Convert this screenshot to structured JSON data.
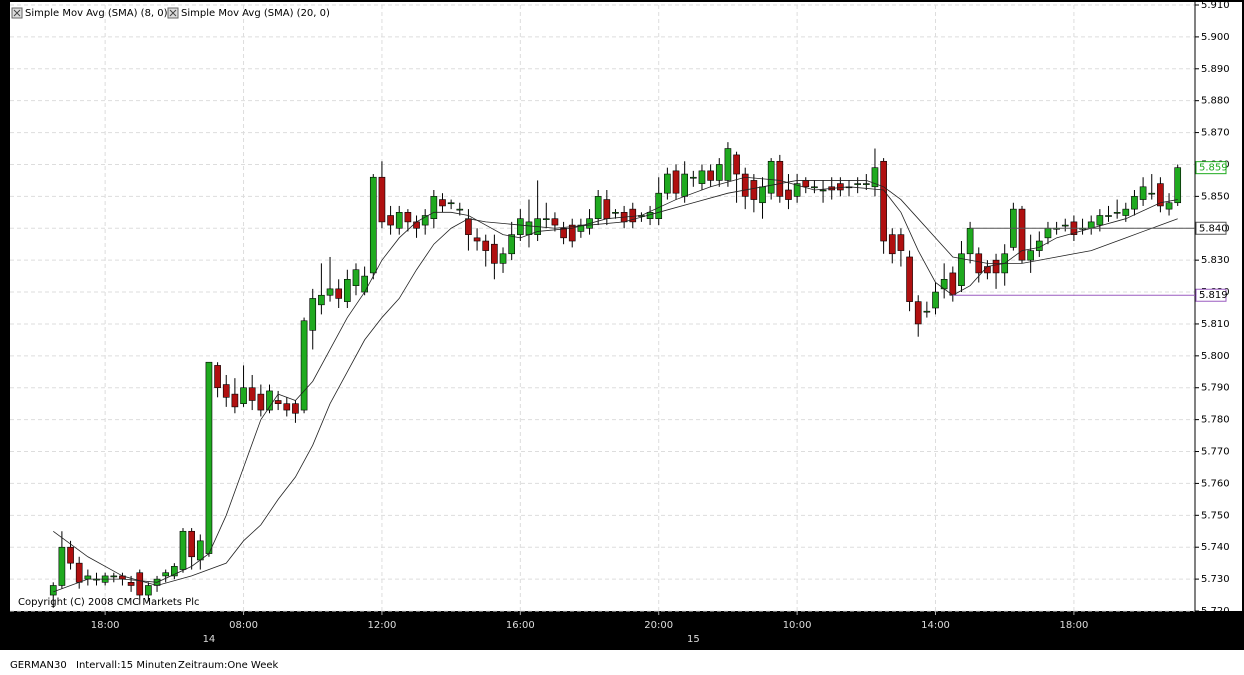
{
  "chart_data": {
    "type": "candlestick",
    "legend": [
      "Simple Mov Avg (SMA) (8, 0)",
      "Simple Mov Avg (SMA) (20, 0)"
    ],
    "copyright": "Copyright (C) 2008 CMC Markets Plc",
    "footer": {
      "symbol": "GERMAN30",
      "interval": "Intervall:15 Minuten",
      "range": "Zeitraum:One Week"
    },
    "up_color": "#1faa1f",
    "down_color": "#b01010",
    "grid": true,
    "ylim": [
      5720,
      5910
    ],
    "yticks": [
      {
        "value": 5720,
        "label": "5.720"
      },
      {
        "value": 5730,
        "label": "5.730"
      },
      {
        "value": 5740,
        "label": "5.740"
      },
      {
        "value": 5750,
        "label": "5.750"
      },
      {
        "value": 5760,
        "label": "5.760"
      },
      {
        "value": 5770,
        "label": "5.770"
      },
      {
        "value": 5780,
        "label": "5.780"
      },
      {
        "value": 5790,
        "label": "5.790"
      },
      {
        "value": 5800,
        "label": "5.800"
      },
      {
        "value": 5810,
        "label": "5.810"
      },
      {
        "value": 5820,
        "label": "5.820"
      },
      {
        "value": 5830,
        "label": "5.830"
      },
      {
        "value": 5840,
        "label": "5.840"
      },
      {
        "value": 5850,
        "label": "5.850"
      },
      {
        "value": 5860,
        "label": "5.860"
      },
      {
        "value": 5870,
        "label": "5.870"
      },
      {
        "value": 5880,
        "label": "5.880"
      },
      {
        "value": 5890,
        "label": "5.890"
      },
      {
        "value": 5900,
        "label": "5.900"
      },
      {
        "value": 5910,
        "label": "5.910"
      }
    ],
    "xlim": [
      -5,
      132
    ],
    "xticks": [
      {
        "value": 6,
        "label": "18:00"
      },
      {
        "value": 22,
        "label": "08:00"
      },
      {
        "value": 38,
        "label": "12:00"
      },
      {
        "value": 54,
        "label": "16:00"
      },
      {
        "value": 70,
        "label": "20:00"
      },
      {
        "value": 86,
        "label": "10:00"
      },
      {
        "value": 102,
        "label": "14:00"
      },
      {
        "value": 118,
        "label": "18:00"
      }
    ],
    "day_ticks": [
      {
        "value": 18,
        "label": "14"
      },
      {
        "value": 74,
        "label": "15"
      }
    ],
    "ohlc": [
      [
        5725,
        5729,
        5721,
        5728
      ],
      [
        5728,
        5745,
        5727,
        5740
      ],
      [
        5740,
        5742,
        5733,
        5735
      ],
      [
        5735,
        5737,
        5727,
        5729
      ],
      [
        5730,
        5733,
        5728,
        5731
      ],
      [
        5730,
        5732,
        5728,
        5730
      ],
      [
        5729,
        5732,
        5728,
        5731
      ],
      [
        5731,
        5732,
        5729,
        5731
      ],
      [
        5731,
        5732,
        5728,
        5730
      ],
      [
        5729,
        5731,
        5726,
        5728
      ],
      [
        5732,
        5733,
        5722,
        5725
      ],
      [
        5725,
        5729,
        5723,
        5728
      ],
      [
        5728,
        5731,
        5726,
        5730
      ],
      [
        5731,
        5733,
        5729,
        5732
      ],
      [
        5731,
        5735,
        5730,
        5734
      ],
      [
        5733,
        5746,
        5732,
        5745
      ],
      [
        5745,
        5746,
        5733,
        5737
      ],
      [
        5736,
        5744,
        5733,
        5742
      ],
      [
        5738,
        5798,
        5737,
        5798
      ],
      [
        5797,
        5798,
        5787,
        5790
      ],
      [
        5791,
        5794,
        5784,
        5787
      ],
      [
        5788,
        5793,
        5782,
        5784
      ],
      [
        5785,
        5797,
        5784,
        5790
      ],
      [
        5790,
        5794,
        5783,
        5786
      ],
      [
        5788,
        5791,
        5781,
        5783
      ],
      [
        5783,
        5791,
        5782,
        5789
      ],
      [
        5786,
        5789,
        5783,
        5785
      ],
      [
        5785,
        5787,
        5781,
        5783
      ],
      [
        5785,
        5786,
        5779,
        5782
      ],
      [
        5783,
        5812,
        5782,
        5811
      ],
      [
        5808,
        5821,
        5802,
        5818
      ],
      [
        5816,
        5829,
        5813,
        5819
      ],
      [
        5819,
        5831,
        5817,
        5821
      ],
      [
        5821,
        5824,
        5815,
        5818
      ],
      [
        5817,
        5827,
        5815,
        5824
      ],
      [
        5822,
        5829,
        5819,
        5827
      ],
      [
        5820,
        5828,
        5819,
        5825
      ],
      [
        5826,
        5857,
        5824,
        5856
      ],
      [
        5856,
        5861,
        5840,
        5842
      ],
      [
        5844,
        5847,
        5838,
        5841
      ],
      [
        5840,
        5847,
        5838,
        5845
      ],
      [
        5845,
        5846,
        5839,
        5842
      ],
      [
        5842,
        5844,
        5837,
        5840
      ],
      [
        5841,
        5846,
        5838,
        5844
      ],
      [
        5843,
        5852,
        5840,
        5850
      ],
      [
        5849,
        5851,
        5845,
        5847
      ],
      [
        5848,
        5849,
        5846,
        5848
      ],
      [
        5846,
        5848,
        5844,
        5846
      ],
      [
        5843,
        5846,
        5833,
        5838
      ],
      [
        5837,
        5840,
        5833,
        5836
      ],
      [
        5836,
        5838,
        5828,
        5833
      ],
      [
        5835,
        5838,
        5824,
        5829
      ],
      [
        5829,
        5834,
        5826,
        5832
      ],
      [
        5832,
        5842,
        5830,
        5838
      ],
      [
        5838,
        5846,
        5836,
        5843
      ],
      [
        5838,
        5849,
        5834,
        5842
      ],
      [
        5838,
        5855,
        5836,
        5843
      ],
      [
        5843,
        5848,
        5840,
        5843
      ],
      [
        5843,
        5845,
        5839,
        5841
      ],
      [
        5840,
        5842,
        5835,
        5837
      ],
      [
        5841,
        5843,
        5834,
        5836
      ],
      [
        5839,
        5843,
        5837,
        5841
      ],
      [
        5840,
        5846,
        5838,
        5843
      ],
      [
        5843,
        5852,
        5841,
        5850
      ],
      [
        5849,
        5852,
        5841,
        5843
      ],
      [
        5845,
        5846,
        5843,
        5845
      ],
      [
        5845,
        5847,
        5840,
        5842
      ],
      [
        5846,
        5848,
        5840,
        5842
      ],
      [
        5844,
        5845,
        5842,
        5844
      ],
      [
        5843,
        5847,
        5841,
        5845
      ],
      [
        5843,
        5856,
        5841,
        5851
      ],
      [
        5851,
        5859,
        5849,
        5857
      ],
      [
        5858,
        5860,
        5849,
        5851
      ],
      [
        5850,
        5861,
        5848,
        5857
      ],
      [
        5856,
        5858,
        5853,
        5856
      ],
      [
        5854,
        5860,
        5852,
        5858
      ],
      [
        5858,
        5860,
        5853,
        5855
      ],
      [
        5855,
        5862,
        5853,
        5860
      ],
      [
        5855,
        5867,
        5853,
        5865
      ],
      [
        5863,
        5864,
        5848,
        5857
      ],
      [
        5857,
        5859,
        5846,
        5850
      ],
      [
        5855,
        5857,
        5845,
        5849
      ],
      [
        5848,
        5856,
        5843,
        5853
      ],
      [
        5851,
        5862,
        5849,
        5861
      ],
      [
        5861,
        5863,
        5848,
        5850
      ],
      [
        5852,
        5857,
        5846,
        5849
      ],
      [
        5850,
        5857,
        5848,
        5854
      ],
      [
        5855,
        5856,
        5851,
        5853
      ],
      [
        5853,
        5855,
        5851,
        5853
      ],
      [
        5852,
        5855,
        5848,
        5852
      ],
      [
        5853,
        5856,
        5849,
        5852
      ],
      [
        5854,
        5856,
        5850,
        5852
      ],
      [
        5853,
        5855,
        5850,
        5853
      ],
      [
        5854,
        5856,
        5851,
        5854
      ],
      [
        5854,
        5857,
        5852,
        5854
      ],
      [
        5853,
        5865,
        5850,
        5859
      ],
      [
        5861,
        5862,
        5832,
        5836
      ],
      [
        5838,
        5840,
        5829,
        5832
      ],
      [
        5838,
        5840,
        5828,
        5833
      ],
      [
        5831,
        5833,
        5814,
        5817
      ],
      [
        5817,
        5819,
        5806,
        5810
      ],
      [
        5814,
        5817,
        5812,
        5814
      ],
      [
        5815,
        5823,
        5813,
        5820
      ],
      [
        5821,
        5829,
        5818,
        5824
      ],
      [
        5826,
        5828,
        5817,
        5819
      ],
      [
        5822,
        5836,
        5820,
        5832
      ],
      [
        5832,
        5842,
        5829,
        5840
      ],
      [
        5832,
        5834,
        5823,
        5826
      ],
      [
        5828,
        5830,
        5824,
        5826
      ],
      [
        5830,
        5832,
        5821,
        5826
      ],
      [
        5826,
        5835,
        5822,
        5832
      ],
      [
        5834,
        5848,
        5833,
        5846
      ],
      [
        5846,
        5847,
        5829,
        5830
      ],
      [
        5830,
        5838,
        5826,
        5833
      ],
      [
        5833,
        5839,
        5831,
        5836
      ],
      [
        5837,
        5842,
        5835,
        5840
      ],
      [
        5840,
        5842,
        5838,
        5840
      ],
      [
        5841,
        5843,
        5839,
        5841
      ],
      [
        5842,
        5844,
        5836,
        5838
      ],
      [
        5840,
        5843,
        5838,
        5840
      ],
      [
        5840,
        5844,
        5838,
        5842
      ],
      [
        5841,
        5846,
        5839,
        5844
      ],
      [
        5844,
        5847,
        5842,
        5844
      ],
      [
        5845,
        5849,
        5843,
        5845
      ],
      [
        5844,
        5848,
        5842,
        5846
      ],
      [
        5846,
        5852,
        5844,
        5850
      ],
      [
        5849,
        5856,
        5847,
        5853
      ],
      [
        5851,
        5857,
        5849,
        5851
      ],
      [
        5854,
        5856,
        5845,
        5847
      ],
      [
        5846,
        5851,
        5844,
        5848
      ],
      [
        5848,
        5860,
        5847,
        5859
      ]
    ],
    "overlays": [
      {
        "name": "Simple Mov Avg (SMA) (8, 0)",
        "color": "#222222",
        "x": [
          0,
          4,
          8,
          12,
          16,
          18,
          20,
          22,
          24,
          26,
          28,
          30,
          32,
          34,
          36,
          38,
          40,
          42,
          44,
          46,
          48,
          50,
          52,
          54,
          56,
          60,
          64,
          68,
          72,
          76,
          80,
          84,
          88,
          92,
          96,
          98,
          100,
          102,
          104,
          106,
          108,
          110,
          112,
          114,
          116,
          120,
          124,
          128,
          130
        ],
        "values": [
          5726,
          5730,
          5730,
          5729,
          5734,
          5738,
          5750,
          5765,
          5780,
          5788,
          5786,
          5792,
          5802,
          5812,
          5820,
          5830,
          5837,
          5842,
          5845,
          5845,
          5844,
          5841,
          5838,
          5837,
          5839,
          5840,
          5843,
          5844,
          5849,
          5853,
          5856,
          5855,
          5852,
          5853,
          5852,
          5845,
          5833,
          5823,
          5819,
          5822,
          5828,
          5829,
          5833,
          5834,
          5837,
          5840,
          5843,
          5848,
          5849
        ]
      },
      {
        "name": "Simple Mov Avg (SMA) (20, 0)",
        "color": "#222222",
        "x": [
          0,
          4,
          8,
          12,
          16,
          20,
          22,
          24,
          26,
          28,
          30,
          32,
          34,
          36,
          38,
          40,
          42,
          44,
          46,
          48,
          50,
          54,
          58,
          62,
          66,
          70,
          74,
          78,
          82,
          86,
          90,
          94,
          96,
          98,
          100,
          102,
          104,
          108,
          112,
          116,
          120,
          124,
          128,
          130
        ],
        "values": [
          5745,
          5737,
          5731,
          5728,
          5731,
          5735,
          5742,
          5747,
          5755,
          5762,
          5772,
          5785,
          5795,
          5805,
          5812,
          5818,
          5827,
          5835,
          5840,
          5843,
          5842,
          5841,
          5840,
          5841,
          5842,
          5845,
          5848,
          5851,
          5853,
          5855,
          5855,
          5855,
          5853,
          5849,
          5843,
          5837,
          5831,
          5829,
          5829,
          5831,
          5833,
          5837,
          5841,
          5843
        ]
      }
    ],
    "levels": [
      {
        "value": 5840,
        "label": "5.840",
        "from": 106,
        "color": "#555555"
      },
      {
        "value": 5819,
        "label": "5.819",
        "from": 104,
        "color": "#9a5cc0"
      }
    ],
    "last": {
      "value": 5859,
      "label": "5.859",
      "color": "#1faa1f"
    }
  }
}
